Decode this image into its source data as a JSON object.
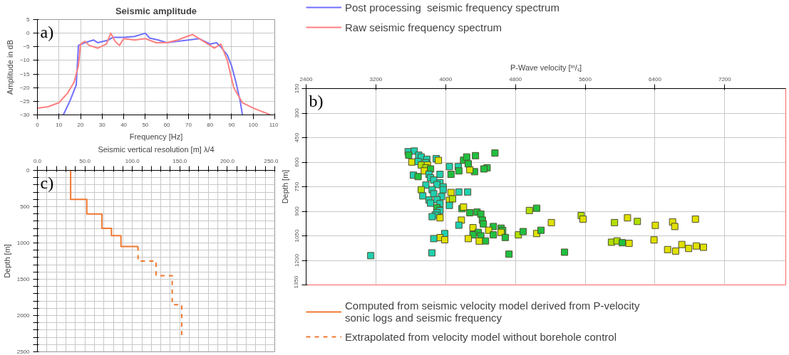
{
  "chart_data": [
    {
      "type": "line",
      "title": "Seismic amplitude",
      "xlabel": "Frequency [Hz]",
      "ylabel": "Amplitude in dB",
      "annotations": [
        "a)"
      ],
      "xlim": [
        0,
        110
      ],
      "ylim": [
        -30,
        5
      ],
      "xticks": [
        0,
        10,
        20,
        30,
        40,
        50,
        60,
        70,
        80,
        90,
        100,
        110
      ],
      "yticks": [
        5,
        0,
        -5,
        -10,
        -15,
        -20,
        -25,
        -30
      ],
      "grid": true,
      "legend": "right",
      "series": [
        {
          "name": "Post processing  seismic frequency spectrum",
          "color": "#7070ff",
          "x": [
            12,
            15,
            18,
            19,
            22,
            26,
            28,
            33,
            35,
            40,
            45,
            50,
            52,
            56,
            60,
            65,
            70,
            75,
            80,
            83,
            85,
            88,
            90,
            92,
            94,
            95
          ],
          "values": [
            -30,
            -25,
            -19,
            -4.5,
            -3.5,
            -2.5,
            -3.5,
            -2.5,
            -1.5,
            -1.5,
            -1.2,
            0,
            -1.8,
            -2.5,
            -3.5,
            -3,
            -2.5,
            -2,
            -4,
            -3.5,
            -5,
            -8,
            -12,
            -18,
            -25,
            -30
          ]
        },
        {
          "name": "Raw seismic frequency spectrum",
          "color": "#ff8080",
          "x": [
            0,
            5,
            10,
            14,
            17,
            19,
            20,
            22,
            24,
            28,
            32,
            34,
            36,
            38,
            40,
            45,
            50,
            55,
            60,
            65,
            70,
            72,
            75,
            80,
            82,
            85,
            88,
            91,
            95,
            100,
            108
          ],
          "values": [
            -27.5,
            -27,
            -25.5,
            -22,
            -18,
            -12,
            -4,
            -3,
            -4.5,
            -5.5,
            -4,
            0,
            -3,
            -4.5,
            -2,
            -2.5,
            -2,
            -3.5,
            -3.5,
            -2.5,
            -1,
            -0.5,
            -2,
            -4.5,
            -5.5,
            -4,
            -10,
            -20,
            -25.5,
            -27.5,
            -30
          ]
        }
      ]
    },
    {
      "type": "scatter",
      "xlabel": "P-Wave velocity [ᵐ/ₛ]",
      "ylabel": "Depth [m]",
      "annotations": [
        "b)"
      ],
      "marker": "square",
      "grid": true,
      "xlim": [
        2400,
        7900
      ],
      "ylim": [
        1350,
        150
      ],
      "xticks": [
        2400,
        3200,
        4000,
        4800,
        5600,
        6400,
        7200
      ],
      "yticks": [
        150,
        300,
        450,
        600,
        750,
        900,
        1050,
        1200,
        1350
      ],
      "x": [
        3570,
        3640,
        3576,
        3691,
        3720,
        3784,
        3892,
        3612,
        3684,
        3773,
        3917,
        3720,
        3791,
        3773,
        3755,
        3827,
        3630,
        3684,
        3809,
        3935,
        3827,
        3863,
        3935,
        3773,
        3899,
        3971,
        3720,
        3845,
        3971,
        4061,
        3738,
        3863,
        3953,
        3809,
        3899,
        4043,
        4079,
        3827,
        3935,
        4043,
        3899,
        3935,
        3899,
        3881,
        3845,
        3935,
        4151,
        4252,
        4043,
        4144,
        4061,
        4151,
        4475,
        4439,
        4331,
        4277,
        4205,
        4259,
        4241,
        4342,
        4565,
        4187,
        4205,
        4277,
        4360,
        4403,
        4180,
        4421,
        4151,
        4432,
        4313,
        4547,
        4636,
        4654,
        4493,
        4374,
        4636,
        4547,
        4313,
        4259,
        4403,
        4683,
        4457,
        4385,
        4834,
        4888,
        5043,
        5093,
        4960,
        5043,
        5212,
        3989,
        3935,
        3863,
        3989,
        3141,
        3842,
        4726,
        5554,
        5575,
        5936,
        6085,
        6198,
        6404,
        6602,
        6627,
        6864,
        5901,
        5965,
        6025,
        6103,
        6389,
        5363,
        6545,
        6637,
        6708,
        6786,
        6874,
        6956
      ],
      "values": [
        536,
        532,
        557,
        557,
        568,
        582,
        578,
        599,
        596,
        603,
        589,
        617,
        617,
        634,
        653,
        641,
        679,
        688,
        674,
        674,
        695,
        709,
        726,
        740,
        737,
        751,
        768,
        768,
        768,
        785,
        806,
        793,
        810,
        831,
        829,
        833,
        824,
        850,
        853,
        864,
        878,
        895,
        909,
        923,
        933,
        940,
        782,
        782,
        627,
        627,
        674,
        653,
        634,
        641,
        658,
        646,
        588,
        610,
        568,
        560,
        544,
        884,
        874,
        909,
        905,
        917,
        954,
        954,
        985,
        977,
        1000,
        993,
        1003,
        1017,
        1016,
        1029,
        1029,
        1044,
        1044,
        1067,
        1050,
        1060,
        1081,
        1082,
        1044,
        1024,
        1036,
        1016,
        895,
        881,
        969,
        1036,
        1061,
        1067,
        1074,
        1171,
        1154,
        1162,
        926,
        948,
        969,
        940,
        962,
        986,
        965,
        993,
        948,
        1089,
        1081,
        1092,
        1096,
        1075,
        1150,
        1134,
        1143,
        1103,
        1127,
        1112,
        1120
      ],
      "colors": [
        "#20d0b0",
        "#20d0b0",
        "#20c040",
        "#20d0b0",
        "#20d0b0",
        "#20d0b0",
        "#20d0b0",
        "#e0e000",
        "#20d0b0",
        "#20d0b0",
        "#e0e000",
        "#b0e000",
        "#e0e000",
        "#b0e000",
        "#e0e000",
        "#20c040",
        "#20d0b0",
        "#20c040",
        "#20d0b0",
        "#20d0b0",
        "#20d0b0",
        "#20d0b0",
        "#20d0b0",
        "#20d0b0",
        "#20d0b0",
        "#20d0b0",
        "#b0e000",
        "#20d0b0",
        "#20d0b0",
        "#e0e000",
        "#20d0b0",
        "#20d0b0",
        "#20d0b0",
        "#20d0b0",
        "#20d0b0",
        "#e0e000",
        "#b0e000",
        "#20d0b0",
        "#20d0b0",
        "#20d0b0",
        "#20c040",
        "#20d0b0",
        "#20d0b0",
        "#20d0b0",
        "#20d0b0",
        "#e0e000",
        "#20d0b0",
        "#20d0b0",
        "#20d0b0",
        "#20d0b0",
        "#20c040",
        "#20c040",
        "#20c040",
        "#20c040",
        "#20c040",
        "#e0e000",
        "#20c040",
        "#20c040",
        "#20c040",
        "#20c040",
        "#20c040",
        "#20c040",
        "#e0e000",
        "#20c040",
        "#20c040",
        "#20c040",
        "#e0e000",
        "#20c040",
        "#20d0b0",
        "#20c040",
        "#e0e000",
        "#20c040",
        "#20c040",
        "#20c040",
        "#e0e000",
        "#20c040",
        "#e0e000",
        "#20c040",
        "#20c040",
        "#e0e000",
        "#20c040",
        "#20c040",
        "#20c040",
        "#e0e000",
        "#b0e000",
        "#20c040",
        "#e0e000",
        "#20c040",
        "#b0e000",
        "#20c040",
        "#e0e000",
        "#20d0b0",
        "#e0e000",
        "#20d0b0",
        "#e0e000",
        "#20d0b0",
        "#20d0b0",
        "#20c040",
        "#b0e000",
        "#e0e000",
        "#b0e000",
        "#e0e000",
        "#b0e000",
        "#e0e000",
        "#e0e000",
        "#e0e000",
        "#e0e000",
        "#b0e000",
        "#b0e000",
        "#20c040",
        "#e0e000",
        "#e0e000",
        "#20c040",
        "#e0e000",
        "#e0e000",
        "#e0e000",
        "#e0e000",
        "#e0e000",
        "#e0e000"
      ]
    },
    {
      "type": "line",
      "xlabel": "Seismic vertical resolution [m] λ/4",
      "ylabel": "Depth [m]",
      "annotations": [
        "c)"
      ],
      "grid": true,
      "legend": "bottom right",
      "xlim": [
        0,
        250
      ],
      "ylim": [
        2500,
        0
      ],
      "xticks": [
        {
          "value": 0,
          "label": "0.0"
        },
        {
          "value": 10,
          "label": null
        },
        {
          "value": 20,
          "label": null
        },
        {
          "value": 30,
          "label": null
        },
        {
          "value": 40,
          "label": null
        },
        {
          "value": 50,
          "label": "50.0"
        },
        {
          "value": 60,
          "label": null
        },
        {
          "value": 70,
          "label": null
        },
        {
          "value": 80,
          "label": null
        },
        {
          "value": 90,
          "label": null
        },
        {
          "value": 100,
          "label": "100.0"
        },
        {
          "value": 110,
          "label": null
        },
        {
          "value": 120,
          "label": null
        },
        {
          "value": 130,
          "label": null
        },
        {
          "value": 140,
          "label": null
        },
        {
          "value": 150,
          "label": "150.0"
        },
        {
          "value": 160,
          "label": null
        },
        {
          "value": 170,
          "label": null
        },
        {
          "value": 180,
          "label": null
        },
        {
          "value": 190,
          "label": null
        },
        {
          "value": 200,
          "label": "200.0"
        },
        {
          "value": 210,
          "label": null
        },
        {
          "value": 220,
          "label": null
        },
        {
          "value": 230,
          "label": null
        },
        {
          "value": 240,
          "label": null
        },
        {
          "value": 250,
          "label": "250.0"
        }
      ],
      "yticks": [
        0,
        {
          "value": 100,
          "label": null
        },
        {
          "value": 200,
          "label": null
        },
        {
          "value": 300,
          "label": null
        },
        {
          "value": 400,
          "label": null
        },
        500,
        {
          "value": 600,
          "label": null
        },
        {
          "value": 700,
          "label": null
        },
        {
          "value": 800,
          "label": null
        },
        {
          "value": 900,
          "label": null
        },
        1000,
        {
          "value": 1100,
          "label": null
        },
        {
          "value": 1200,
          "label": null
        },
        {
          "value": 1300,
          "label": null
        },
        {
          "value": 1400,
          "label": null
        },
        1500,
        {
          "value": 1600,
          "label": null
        },
        {
          "value": 1700,
          "label": null
        },
        {
          "value": 1800,
          "label": null
        },
        {
          "value": 1900,
          "label": null
        },
        2000,
        {
          "value": 2100,
          "label": null
        },
        {
          "value": 2200,
          "label": null
        },
        {
          "value": 2300,
          "label": null
        },
        {
          "value": 2400,
          "label": null
        },
        2500
      ],
      "series": [
        {
          "name": "Computed from seismic velocity model derived from P-velocity sonic logs and seismic frequency",
          "color": "#f07830",
          "line_style": "solid",
          "x": [
            35,
            35,
            52,
            52,
            68,
            68,
            78,
            78,
            88,
            88,
            106
          ],
          "values": [
            0,
            400,
            400,
            600,
            600,
            800,
            800,
            900,
            900,
            1050,
            1050
          ]
        },
        {
          "name": "Extrapolated from velocity model without borehole control",
          "color": "#f07830",
          "line_style": "dashed",
          "x": [
            106,
            106,
            125,
            125,
            142,
            142,
            152,
            152
          ],
          "values": [
            1050,
            1250,
            1250,
            1450,
            1450,
            1850,
            1850,
            2270
          ]
        }
      ]
    }
  ]
}
